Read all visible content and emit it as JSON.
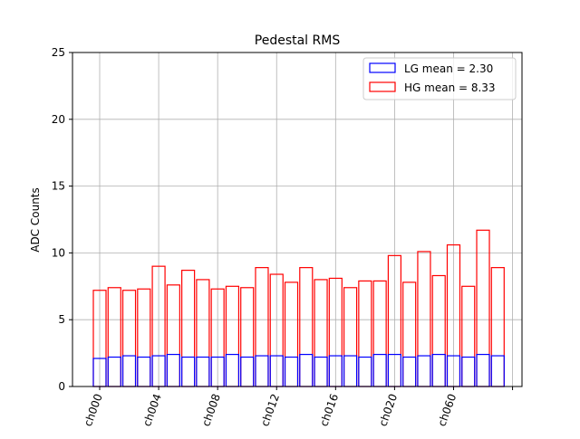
{
  "chart_data": {
    "type": "bar",
    "title": "Pedestal RMS",
    "xlabel": "",
    "ylabel": "ADC Counts",
    "ylim": [
      0,
      25
    ],
    "yticks": [
      0,
      5,
      10,
      15,
      20,
      25
    ],
    "grid": true,
    "legend_position": "top-right",
    "channel_count": 28,
    "xticks": [
      {
        "label": "ch000",
        "index": 0
      },
      {
        "label": "ch004",
        "index": 4
      },
      {
        "label": "ch008",
        "index": 8
      },
      {
        "label": "ch012",
        "index": 12
      },
      {
        "label": "ch016",
        "index": 16
      },
      {
        "label": "ch020",
        "index": 20
      },
      {
        "label": "ch060",
        "index": 24
      },
      {
        "label": "",
        "index": 28
      }
    ],
    "series": [
      {
        "name": "HG mean = 8.33",
        "color": "#ff0000",
        "values": [
          7.2,
          7.4,
          7.2,
          7.3,
          9.0,
          7.6,
          8.7,
          8.0,
          7.3,
          7.5,
          7.4,
          8.9,
          8.4,
          7.8,
          8.9,
          8.0,
          8.1,
          7.4,
          7.9,
          7.9,
          9.8,
          7.8,
          10.1,
          8.3,
          10.6,
          7.5,
          11.7,
          8.9
        ]
      },
      {
        "name": "LG mean = 2.30",
        "color": "#0000ff",
        "values": [
          2.1,
          2.2,
          2.3,
          2.2,
          2.3,
          2.4,
          2.2,
          2.2,
          2.2,
          2.4,
          2.2,
          2.3,
          2.3,
          2.2,
          2.4,
          2.2,
          2.3,
          2.3,
          2.2,
          2.4,
          2.4,
          2.2,
          2.3,
          2.4,
          2.3,
          2.2,
          2.4,
          2.3
        ]
      }
    ]
  }
}
